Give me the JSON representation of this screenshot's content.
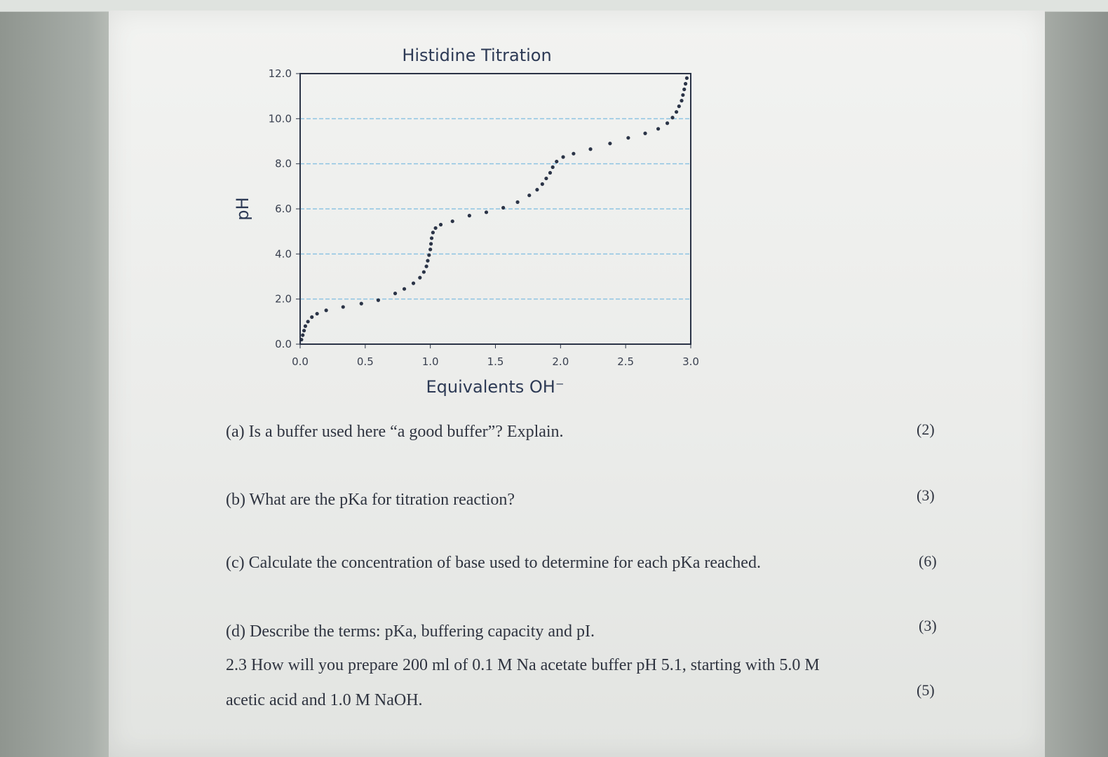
{
  "chart_data": {
    "type": "scatter",
    "title": "Histidine Titration",
    "xlabel": "Equivalents OH⁻",
    "ylabel": "pH",
    "xlim": [
      0,
      3.0
    ],
    "ylim": [
      0,
      12.0
    ],
    "xticks": [
      "0.0",
      "0.5",
      "1.0",
      "1.5",
      "2.0",
      "2.5",
      "3.0"
    ],
    "yticks": [
      "0.0",
      "2.0",
      "4.0",
      "6.0",
      "8.0",
      "10.0",
      "12.0"
    ],
    "grid": "horizontal dashed",
    "colors": {
      "points": "#2b3447",
      "grid": "#8ec4e2",
      "frame": "#2b3447"
    },
    "series": [
      {
        "points": [
          [
            0.01,
            0.2
          ],
          [
            0.02,
            0.4
          ],
          [
            0.03,
            0.6
          ],
          [
            0.04,
            0.8
          ],
          [
            0.06,
            1.0
          ],
          [
            0.09,
            1.2
          ],
          [
            0.13,
            1.35
          ],
          [
            0.2,
            1.5
          ],
          [
            0.33,
            1.65
          ],
          [
            0.47,
            1.8
          ],
          [
            0.6,
            1.95
          ],
          [
            0.73,
            2.25
          ],
          [
            0.8,
            2.45
          ],
          [
            0.87,
            2.7
          ],
          [
            0.92,
            2.95
          ],
          [
            0.95,
            3.2
          ],
          [
            0.97,
            3.45
          ],
          [
            0.98,
            3.7
          ],
          [
            0.99,
            3.95
          ],
          [
            1.0,
            4.2
          ],
          [
            1.005,
            4.45
          ],
          [
            1.01,
            4.7
          ],
          [
            1.02,
            4.95
          ],
          [
            1.04,
            5.15
          ],
          [
            1.08,
            5.3
          ],
          [
            1.17,
            5.45
          ],
          [
            1.3,
            5.7
          ],
          [
            1.43,
            5.85
          ],
          [
            1.56,
            6.05
          ],
          [
            1.67,
            6.3
          ],
          [
            1.76,
            6.6
          ],
          [
            1.82,
            6.85
          ],
          [
            1.86,
            7.1
          ],
          [
            1.89,
            7.35
          ],
          [
            1.92,
            7.6
          ],
          [
            1.94,
            7.85
          ],
          [
            1.97,
            8.1
          ],
          [
            2.02,
            8.3
          ],
          [
            2.1,
            8.45
          ],
          [
            2.23,
            8.65
          ],
          [
            2.38,
            8.9
          ],
          [
            2.52,
            9.15
          ],
          [
            2.65,
            9.35
          ],
          [
            2.75,
            9.55
          ],
          [
            2.82,
            9.8
          ],
          [
            2.86,
            10.05
          ],
          [
            2.89,
            10.3
          ],
          [
            2.91,
            10.55
          ],
          [
            2.93,
            10.8
          ],
          [
            2.94,
            11.05
          ],
          [
            2.95,
            11.3
          ],
          [
            2.96,
            11.55
          ],
          [
            2.97,
            11.8
          ]
        ]
      }
    ]
  },
  "questions": {
    "a": {
      "text": "(a) Is a buffer used here “a good buffer”? Explain.",
      "marks": "(2)"
    },
    "b": {
      "text": "(b) What are the pKa for titration reaction?",
      "marks": "(3)"
    },
    "c": {
      "text": "(c) Calculate the concentration of base used to determine for each pKa reached.",
      "marks": "(6)"
    },
    "d": {
      "text": "(d) Describe the terms: pKa, buffering capacity and pI.",
      "marks": "(3)"
    },
    "q23_line1": "2.3 How will you prepare 200 ml of 0.1 M Na acetate buffer pH 5.1, starting with 5.0 M",
    "q23_line2": "acetic acid and 1.0 M NaOH.",
    "q23_marks": "(5)"
  }
}
